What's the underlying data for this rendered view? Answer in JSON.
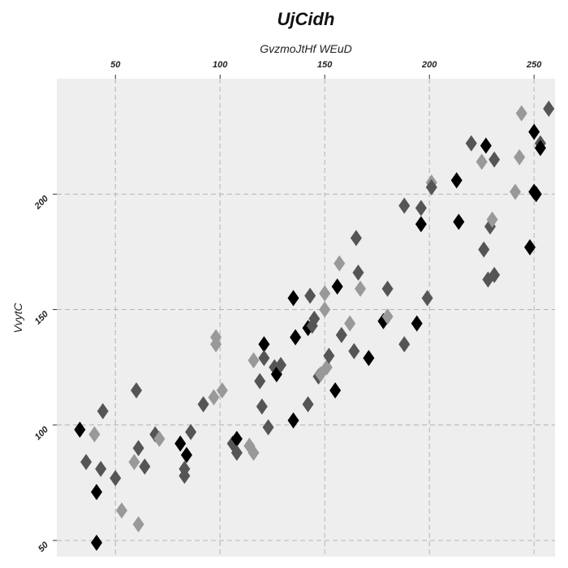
{
  "chart_data": {
    "type": "scatter",
    "title": "UjCidh",
    "xlabel": "GvzmoJtHf WEuD",
    "ylabel": "VvytC",
    "x_axis_position": "top",
    "xlim": [
      22,
      260
    ],
    "ylim": [
      43,
      250
    ],
    "xticks": [
      50,
      100,
      150,
      200,
      250
    ],
    "yticks": [
      50,
      100,
      150,
      200
    ],
    "grid": true,
    "marker": "diamond",
    "colors": {
      "plot_background": "#eeeeee",
      "black": "#000000",
      "dark_gray": "#555555",
      "light_gray": "#999999"
    },
    "points": [
      {
        "x": 33,
        "y": 98,
        "c": "black"
      },
      {
        "x": 36,
        "y": 84,
        "c": "dark_gray"
      },
      {
        "x": 40,
        "y": 96,
        "c": "light_gray"
      },
      {
        "x": 41,
        "y": 71,
        "c": "black"
      },
      {
        "x": 41,
        "y": 49,
        "c": "black"
      },
      {
        "x": 43,
        "y": 81,
        "c": "dark_gray"
      },
      {
        "x": 44,
        "y": 106,
        "c": "dark_gray"
      },
      {
        "x": 50,
        "y": 77,
        "c": "dark_gray"
      },
      {
        "x": 53,
        "y": 63,
        "c": "light_gray"
      },
      {
        "x": 59,
        "y": 84,
        "c": "light_gray"
      },
      {
        "x": 60,
        "y": 115,
        "c": "dark_gray"
      },
      {
        "x": 61,
        "y": 57,
        "c": "light_gray"
      },
      {
        "x": 61,
        "y": 90,
        "c": "dark_gray"
      },
      {
        "x": 64,
        "y": 82,
        "c": "dark_gray"
      },
      {
        "x": 69,
        "y": 96,
        "c": "dark_gray"
      },
      {
        "x": 71,
        "y": 94,
        "c": "light_gray"
      },
      {
        "x": 81,
        "y": 92,
        "c": "black"
      },
      {
        "x": 83,
        "y": 78,
        "c": "dark_gray"
      },
      {
        "x": 83,
        "y": 81,
        "c": "dark_gray"
      },
      {
        "x": 84,
        "y": 87,
        "c": "black"
      },
      {
        "x": 86,
        "y": 97,
        "c": "dark_gray"
      },
      {
        "x": 92,
        "y": 109,
        "c": "dark_gray"
      },
      {
        "x": 97,
        "y": 112,
        "c": "light_gray"
      },
      {
        "x": 98,
        "y": 135,
        "c": "light_gray"
      },
      {
        "x": 98,
        "y": 138,
        "c": "light_gray"
      },
      {
        "x": 101,
        "y": 115,
        "c": "light_gray"
      },
      {
        "x": 106,
        "y": 92,
        "c": "dark_gray"
      },
      {
        "x": 108,
        "y": 94,
        "c": "black"
      },
      {
        "x": 108,
        "y": 88,
        "c": "dark_gray"
      },
      {
        "x": 114,
        "y": 91,
        "c": "light_gray"
      },
      {
        "x": 116,
        "y": 88,
        "c": "light_gray"
      },
      {
        "x": 116,
        "y": 128,
        "c": "light_gray"
      },
      {
        "x": 119,
        "y": 119,
        "c": "dark_gray"
      },
      {
        "x": 120,
        "y": 108,
        "c": "dark_gray"
      },
      {
        "x": 121,
        "y": 135,
        "c": "black"
      },
      {
        "x": 121,
        "y": 129,
        "c": "dark_gray"
      },
      {
        "x": 123,
        "y": 99,
        "c": "dark_gray"
      },
      {
        "x": 126,
        "y": 125,
        "c": "dark_gray"
      },
      {
        "x": 127,
        "y": 122,
        "c": "black"
      },
      {
        "x": 129,
        "y": 126,
        "c": "dark_gray"
      },
      {
        "x": 135,
        "y": 102,
        "c": "black"
      },
      {
        "x": 135,
        "y": 155,
        "c": "black"
      },
      {
        "x": 136,
        "y": 138,
        "c": "black"
      },
      {
        "x": 142,
        "y": 109,
        "c": "dark_gray"
      },
      {
        "x": 142,
        "y": 142,
        "c": "black"
      },
      {
        "x": 143,
        "y": 156,
        "c": "dark_gray"
      },
      {
        "x": 144,
        "y": 143,
        "c": "dark_gray"
      },
      {
        "x": 145,
        "y": 146,
        "c": "dark_gray"
      },
      {
        "x": 147,
        "y": 121,
        "c": "dark_gray"
      },
      {
        "x": 148,
        "y": 122,
        "c": "light_gray"
      },
      {
        "x": 150,
        "y": 157,
        "c": "light_gray"
      },
      {
        "x": 150,
        "y": 150,
        "c": "light_gray"
      },
      {
        "x": 151,
        "y": 125,
        "c": "light_gray"
      },
      {
        "x": 152,
        "y": 130,
        "c": "dark_gray"
      },
      {
        "x": 155,
        "y": 115,
        "c": "black"
      },
      {
        "x": 156,
        "y": 160,
        "c": "black"
      },
      {
        "x": 157,
        "y": 170,
        "c": "light_gray"
      },
      {
        "x": 158,
        "y": 139,
        "c": "dark_gray"
      },
      {
        "x": 162,
        "y": 144,
        "c": "light_gray"
      },
      {
        "x": 164,
        "y": 132,
        "c": "dark_gray"
      },
      {
        "x": 165,
        "y": 181,
        "c": "dark_gray"
      },
      {
        "x": 166,
        "y": 166,
        "c": "dark_gray"
      },
      {
        "x": 167,
        "y": 159,
        "c": "light_gray"
      },
      {
        "x": 171,
        "y": 129,
        "c": "black"
      },
      {
        "x": 178,
        "y": 145,
        "c": "black"
      },
      {
        "x": 180,
        "y": 147,
        "c": "light_gray"
      },
      {
        "x": 180,
        "y": 159,
        "c": "dark_gray"
      },
      {
        "x": 188,
        "y": 135,
        "c": "dark_gray"
      },
      {
        "x": 188,
        "y": 195,
        "c": "dark_gray"
      },
      {
        "x": 194,
        "y": 144,
        "c": "black"
      },
      {
        "x": 196,
        "y": 187,
        "c": "black"
      },
      {
        "x": 196,
        "y": 194,
        "c": "dark_gray"
      },
      {
        "x": 199,
        "y": 155,
        "c": "dark_gray"
      },
      {
        "x": 201,
        "y": 205,
        "c": "light_gray"
      },
      {
        "x": 201,
        "y": 203,
        "c": "dark_gray"
      },
      {
        "x": 213,
        "y": 206,
        "c": "black"
      },
      {
        "x": 214,
        "y": 188,
        "c": "black"
      },
      {
        "x": 220,
        "y": 222,
        "c": "dark_gray"
      },
      {
        "x": 225,
        "y": 214,
        "c": "light_gray"
      },
      {
        "x": 226,
        "y": 176,
        "c": "dark_gray"
      },
      {
        "x": 227,
        "y": 221,
        "c": "black"
      },
      {
        "x": 228,
        "y": 163,
        "c": "dark_gray"
      },
      {
        "x": 229,
        "y": 186,
        "c": "dark_gray"
      },
      {
        "x": 230,
        "y": 189,
        "c": "light_gray"
      },
      {
        "x": 231,
        "y": 215,
        "c": "dark_gray"
      },
      {
        "x": 231,
        "y": 165,
        "c": "dark_gray"
      },
      {
        "x": 241,
        "y": 201,
        "c": "light_gray"
      },
      {
        "x": 243,
        "y": 216,
        "c": "light_gray"
      },
      {
        "x": 244,
        "y": 235,
        "c": "light_gray"
      },
      {
        "x": 248,
        "y": 177,
        "c": "black"
      },
      {
        "x": 250,
        "y": 227,
        "c": "black"
      },
      {
        "x": 250,
        "y": 201,
        "c": "black"
      },
      {
        "x": 251,
        "y": 200,
        "c": "black"
      },
      {
        "x": 253,
        "y": 222,
        "c": "dark_gray"
      },
      {
        "x": 253,
        "y": 220,
        "c": "black"
      },
      {
        "x": 257,
        "y": 237,
        "c": "dark_gray"
      }
    ]
  }
}
